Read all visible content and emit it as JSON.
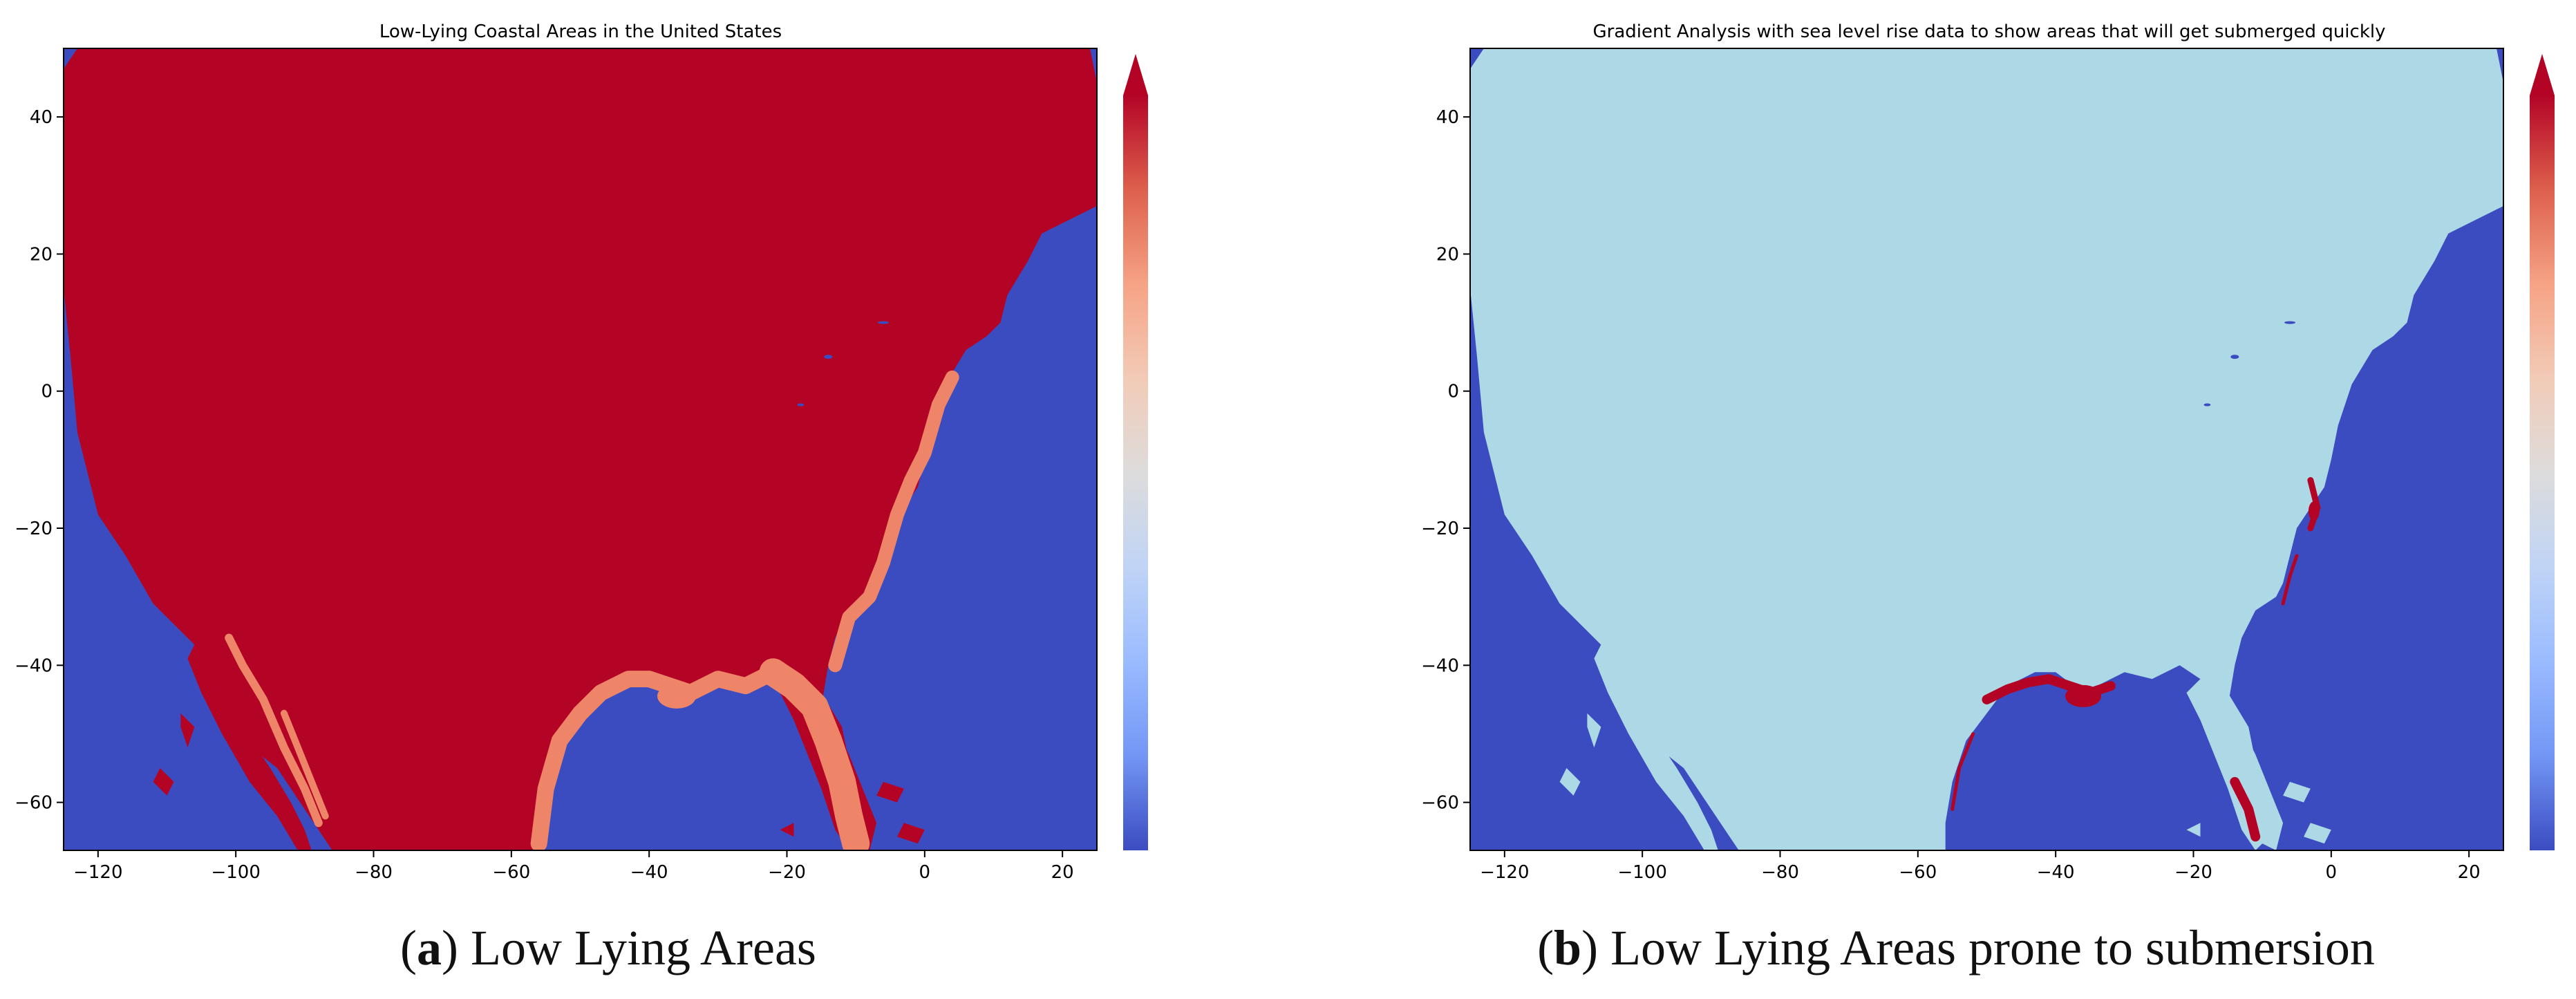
{
  "colors": {
    "sea": "#3b4cc0",
    "land_high": "#b40426",
    "low_lying": "#ee8468",
    "land_safe": "#add8e6",
    "submerge": "#b40426",
    "axis": "#000000",
    "background": "#ffffff"
  },
  "colormap": {
    "name": "coolwarm",
    "stops": [
      "#b40426",
      "#dd604d",
      "#f6a385",
      "#f2cbb7",
      "#dddcdc",
      "#c0d4f5",
      "#9abbff",
      "#7396f5",
      "#3b4cc0"
    ],
    "extend": "max"
  },
  "panels": [
    {
      "id": "a",
      "title": "Low-Lying Coastal Areas in the United States",
      "caption_label": "a",
      "caption_text": "Low Lying Areas",
      "xlim": [
        -125,
        25
      ],
      "ylim": [
        -67,
        50
      ],
      "xticks": [
        -120,
        -100,
        -80,
        -60,
        -40,
        -20,
        0,
        20
      ],
      "yticks": [
        40,
        20,
        0,
        -20,
        -40,
        -60
      ],
      "land_color": "#b40426",
      "coast_color": "#ee8468",
      "hotspot_color": "#ee8468",
      "hotspot_mode": "wide"
    },
    {
      "id": "b",
      "title": "Gradient Analysis with sea level rise data to show areas that will get submerged quickly",
      "caption_label": "b",
      "caption_text": "Low Lying Areas prone to submersion",
      "xlim": [
        -125,
        25
      ],
      "ylim": [
        -67,
        50
      ],
      "xticks": [
        -120,
        -100,
        -80,
        -60,
        -40,
        -20,
        0,
        20
      ],
      "yticks": [
        40,
        20,
        0,
        -20,
        -40,
        -60
      ],
      "land_color": "#add8e6",
      "coast_color": "#add8e6",
      "hotspot_color": "#b40426",
      "hotspot_mode": "spots"
    }
  ]
}
